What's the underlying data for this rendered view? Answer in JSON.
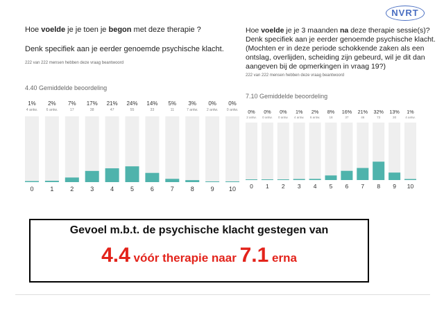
{
  "logo": "NVRT",
  "left_question": {
    "line1_pre": "Hoe ",
    "line1_bold1": "voelde",
    "line1_mid": " je je toen je ",
    "line1_bold2": "begon",
    "line1_post": " met deze therapie ?",
    "line2": "Denk specifiek aan je eerder genoemde psychische klacht.",
    "respondents": "222 van 222 mensen hebben deze vraag beantwoord",
    "average": "4.40 Gemiddelde beoordeling"
  },
  "right_question": {
    "line1_pre": "Hoe ",
    "line1_bold1": "voelde",
    "line1_mid": " je je 3 maanden ",
    "line1_bold2": "na",
    "line1_post": " deze therapie sessie(s)?",
    "line2": "Denk specifiek aan je eerder genoemde psychische klacht.",
    "line3": "(Mochten er in deze periode schokkende zaken als een",
    "line4": "ontslag, overlijden, scheiding zijn gebeurd, wil je dit dan",
    "line5": "aangeven bij de opmerkingen in vraag 19?)",
    "respondents": "222 van 222 mensen hebben deze vraag beantwoord",
    "average": "7.10 Gemiddelde beoordeling"
  },
  "chart_data": [
    {
      "type": "bar",
      "categories": [
        "0",
        "1",
        "2",
        "3",
        "4",
        "5",
        "6",
        "7",
        "8",
        "9",
        "10"
      ],
      "values": [
        1,
        2,
        7,
        17,
        21,
        24,
        14,
        5,
        3,
        0,
        0
      ],
      "percent_labels": [
        "1%",
        "2%",
        "7%",
        "17%",
        "21%",
        "24%",
        "14%",
        "5%",
        "3%",
        "0%",
        "0%"
      ],
      "count_labels": [
        "4 antw.",
        "6 antw.",
        "17",
        "38",
        "47",
        "55",
        "33",
        "11",
        "7 antw.",
        "2 antw.",
        "0 antw."
      ],
      "ylim": [
        0,
        100
      ],
      "bar_color": "#4fb3ac",
      "track_color": "#efefef"
    },
    {
      "type": "bar",
      "categories": [
        "0",
        "1",
        "2",
        "3",
        "4",
        "5",
        "6",
        "7",
        "8",
        "9",
        "10"
      ],
      "values": [
        0,
        0,
        0,
        1,
        2,
        8,
        16,
        21,
        32,
        13,
        1
      ],
      "percent_labels": [
        "0%",
        "0%",
        "0%",
        "1%",
        "2%",
        "8%",
        "16%",
        "21%",
        "32%",
        "13%",
        "1%"
      ],
      "count_labels": [
        "2 antw.",
        "0 antw.",
        "0 antw.",
        "4 antw.",
        "6 antw.",
        "18",
        "37",
        "46",
        "73",
        "30",
        "4 antw."
      ],
      "ylim": [
        0,
        100
      ],
      "bar_color": "#4fb3ac",
      "track_color": "#efefef"
    }
  ],
  "summary": {
    "line1": "Gevoel m.b.t. de psychische klacht gestegen van",
    "from_value": "4.4",
    "middle": " vóór therapie naar ",
    "to_value": "7.1",
    "end": " erna"
  }
}
